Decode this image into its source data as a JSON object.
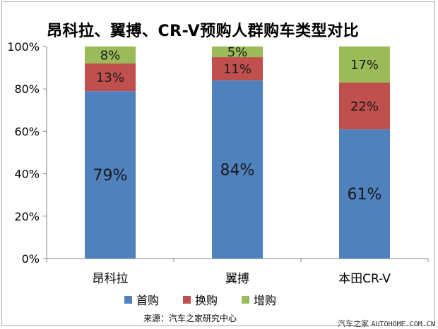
{
  "chart_data": {
    "type": "bar",
    "stacked": true,
    "title": "昂科拉、翼搏、CR-V预购人群购车类型对比",
    "categories": [
      "昂科拉",
      "翼搏",
      "本田CR-V"
    ],
    "series": [
      {
        "name": "首购",
        "color": "#4f81bd",
        "values": [
          79,
          84,
          61
        ],
        "labels": [
          "79%",
          "84%",
          "61%"
        ]
      },
      {
        "name": "换购",
        "color": "#c0504d",
        "values": [
          13,
          11,
          22
        ],
        "labels": [
          "13%",
          "11%",
          "22%"
        ]
      },
      {
        "name": "增购",
        "color": "#9bbb59",
        "values": [
          8,
          5,
          17
        ],
        "labels": [
          "8%",
          "5%",
          "17%"
        ]
      }
    ],
    "ylim": [
      0,
      100
    ],
    "yticks": [
      "0%",
      "20%",
      "40%",
      "60%",
      "80%",
      "100%"
    ],
    "grid": false,
    "legend_position": "bottom"
  },
  "source_text": "来源：汽车之家研究中心",
  "watermark": {
    "cn": "汽车之家",
    "latin": "AUTOHOME.COM.CN"
  }
}
